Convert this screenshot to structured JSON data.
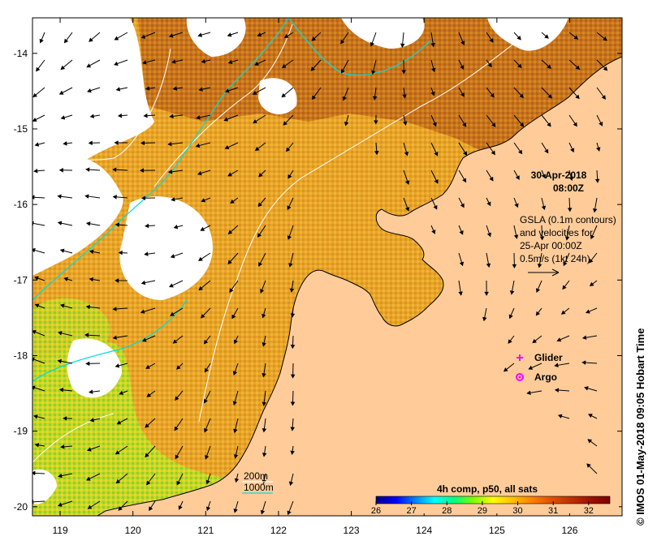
{
  "map": {
    "x_ticks": [
      "119",
      "120",
      "121",
      "122",
      "123",
      "124",
      "125",
      "126"
    ],
    "y_ticks": [
      "-14",
      "-15",
      "-16",
      "-17",
      "-18",
      "-19",
      "-20"
    ],
    "lon_range": [
      118.62,
      126.72
    ],
    "lat_range": [
      -20.12,
      -13.53
    ],
    "land_color": "#ffcc99",
    "coast_color": "#000000"
  },
  "timestamp": {
    "date": "30-Apr-2018",
    "time": "08:00Z"
  },
  "gsla_note": {
    "lines": [
      "GSLA (0.1m contours)",
      "and velocities for",
      "25-Apr 00:00Z",
      "0.5m/s (1kt 24h)"
    ],
    "arrow_icon": "right-arrow-icon"
  },
  "legend_markers": {
    "glider": {
      "label": "Glider",
      "color": "#ff00ff",
      "icon": "plus-icon"
    },
    "argo": {
      "label": "Argo",
      "color": "#ff00ff",
      "icon": "gear-icon"
    }
  },
  "bathymetry_legend": {
    "contour_200": {
      "label": "200m",
      "color": "#ffffff"
    },
    "contour_1000": {
      "label": "1000m",
      "color": "#00dddd"
    }
  },
  "colorbar": {
    "title": "4h comp, p50, all sats",
    "ticks": [
      "26",
      "27",
      "28",
      "29",
      "30",
      "31",
      "32"
    ],
    "range": [
      26,
      32.6
    ],
    "colors": [
      "#000080",
      "#0000ff",
      "#0080ff",
      "#00ffff",
      "#00ff80",
      "#80ff00",
      "#ffff00",
      "#ffc000",
      "#ff8000",
      "#e05000",
      "#c03000",
      "#a01000",
      "#800000"
    ]
  },
  "credit": "© IMOS 01-May-2018 09:05 Hobart Time"
}
